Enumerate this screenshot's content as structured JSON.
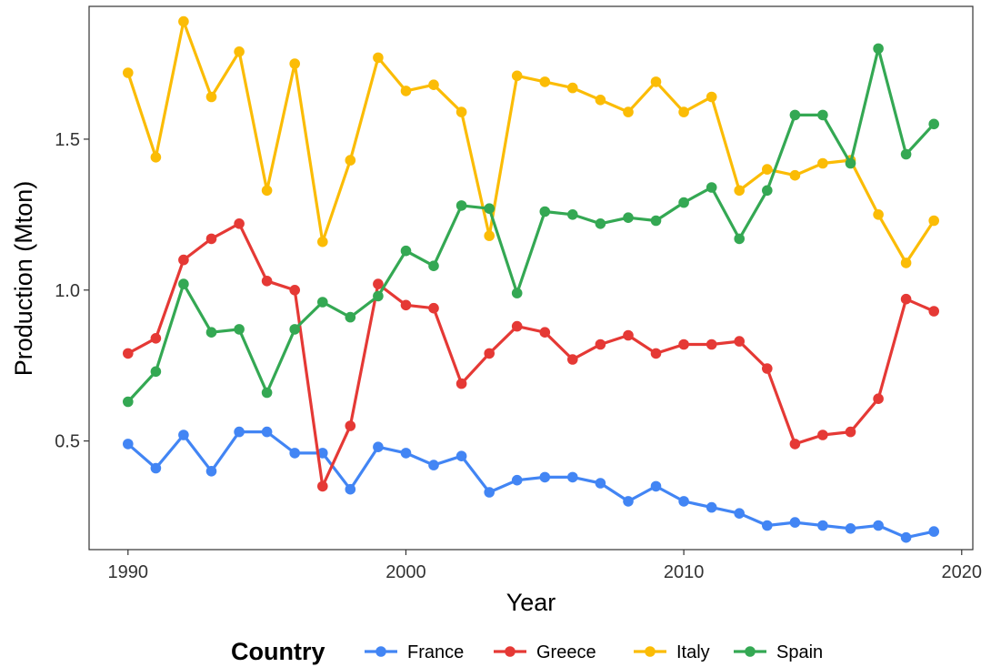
{
  "chart_data": {
    "type": "line",
    "title": "",
    "xlabel": "Year",
    "ylabel": "Production (Mton)",
    "xlim": [
      1988.6,
      2020.4
    ],
    "ylim": [
      0.14,
      1.94
    ],
    "x_ticks": [
      1990,
      2000,
      2010,
      2020
    ],
    "y_ticks": [
      0.5,
      1.0,
      1.5
    ],
    "y_tick_labels": [
      "0.5",
      "1.0",
      "1.5"
    ],
    "grid": false,
    "legend_position": "bottom",
    "legend_title": "Country",
    "x": [
      1990,
      1991,
      1992,
      1993,
      1994,
      1995,
      1996,
      1997,
      1998,
      1999,
      2000,
      2001,
      2002,
      2003,
      2004,
      2005,
      2006,
      2007,
      2008,
      2009,
      2010,
      2011,
      2012,
      2013,
      2014,
      2015,
      2016,
      2017,
      2018,
      2019
    ],
    "series": [
      {
        "name": "France",
        "color": "#4285F4",
        "values": [
          0.49,
          0.41,
          0.52,
          0.4,
          0.53,
          0.53,
          0.46,
          0.46,
          0.34,
          0.48,
          0.46,
          0.42,
          0.45,
          0.33,
          0.37,
          0.38,
          0.38,
          0.36,
          0.3,
          0.35,
          0.3,
          0.28,
          0.26,
          0.22,
          0.23,
          0.22,
          0.21,
          0.22,
          0.18,
          0.2
        ]
      },
      {
        "name": "Greece",
        "color": "#E53935",
        "values": [
          0.79,
          0.84,
          1.1,
          1.17,
          1.22,
          1.03,
          1.0,
          0.35,
          0.55,
          1.02,
          0.95,
          0.94,
          0.69,
          0.79,
          0.88,
          0.86,
          0.77,
          0.82,
          0.85,
          0.79,
          0.82,
          0.82,
          0.83,
          0.74,
          0.49,
          0.52,
          0.53,
          0.64,
          0.97,
          0.93
        ]
      },
      {
        "name": "Italy",
        "color": "#FBBC05",
        "values": [
          1.72,
          1.44,
          1.89,
          1.64,
          1.79,
          1.33,
          1.75,
          1.16,
          1.43,
          1.77,
          1.66,
          1.68,
          1.59,
          1.18,
          1.71,
          1.69,
          1.67,
          1.63,
          1.59,
          1.69,
          1.59,
          1.64,
          1.33,
          1.4,
          1.38,
          1.42,
          1.43,
          1.25,
          1.09,
          1.23
        ]
      },
      {
        "name": "Spain",
        "color": "#34A853",
        "values": [
          0.63,
          0.73,
          1.02,
          0.86,
          0.87,
          0.66,
          0.87,
          0.96,
          0.91,
          0.98,
          1.13,
          1.08,
          1.28,
          1.27,
          0.99,
          1.26,
          1.25,
          1.22,
          1.24,
          1.23,
          1.29,
          1.34,
          1.17,
          1.33,
          1.58,
          1.58,
          1.42,
          1.8,
          1.45,
          1.55
        ]
      }
    ]
  }
}
